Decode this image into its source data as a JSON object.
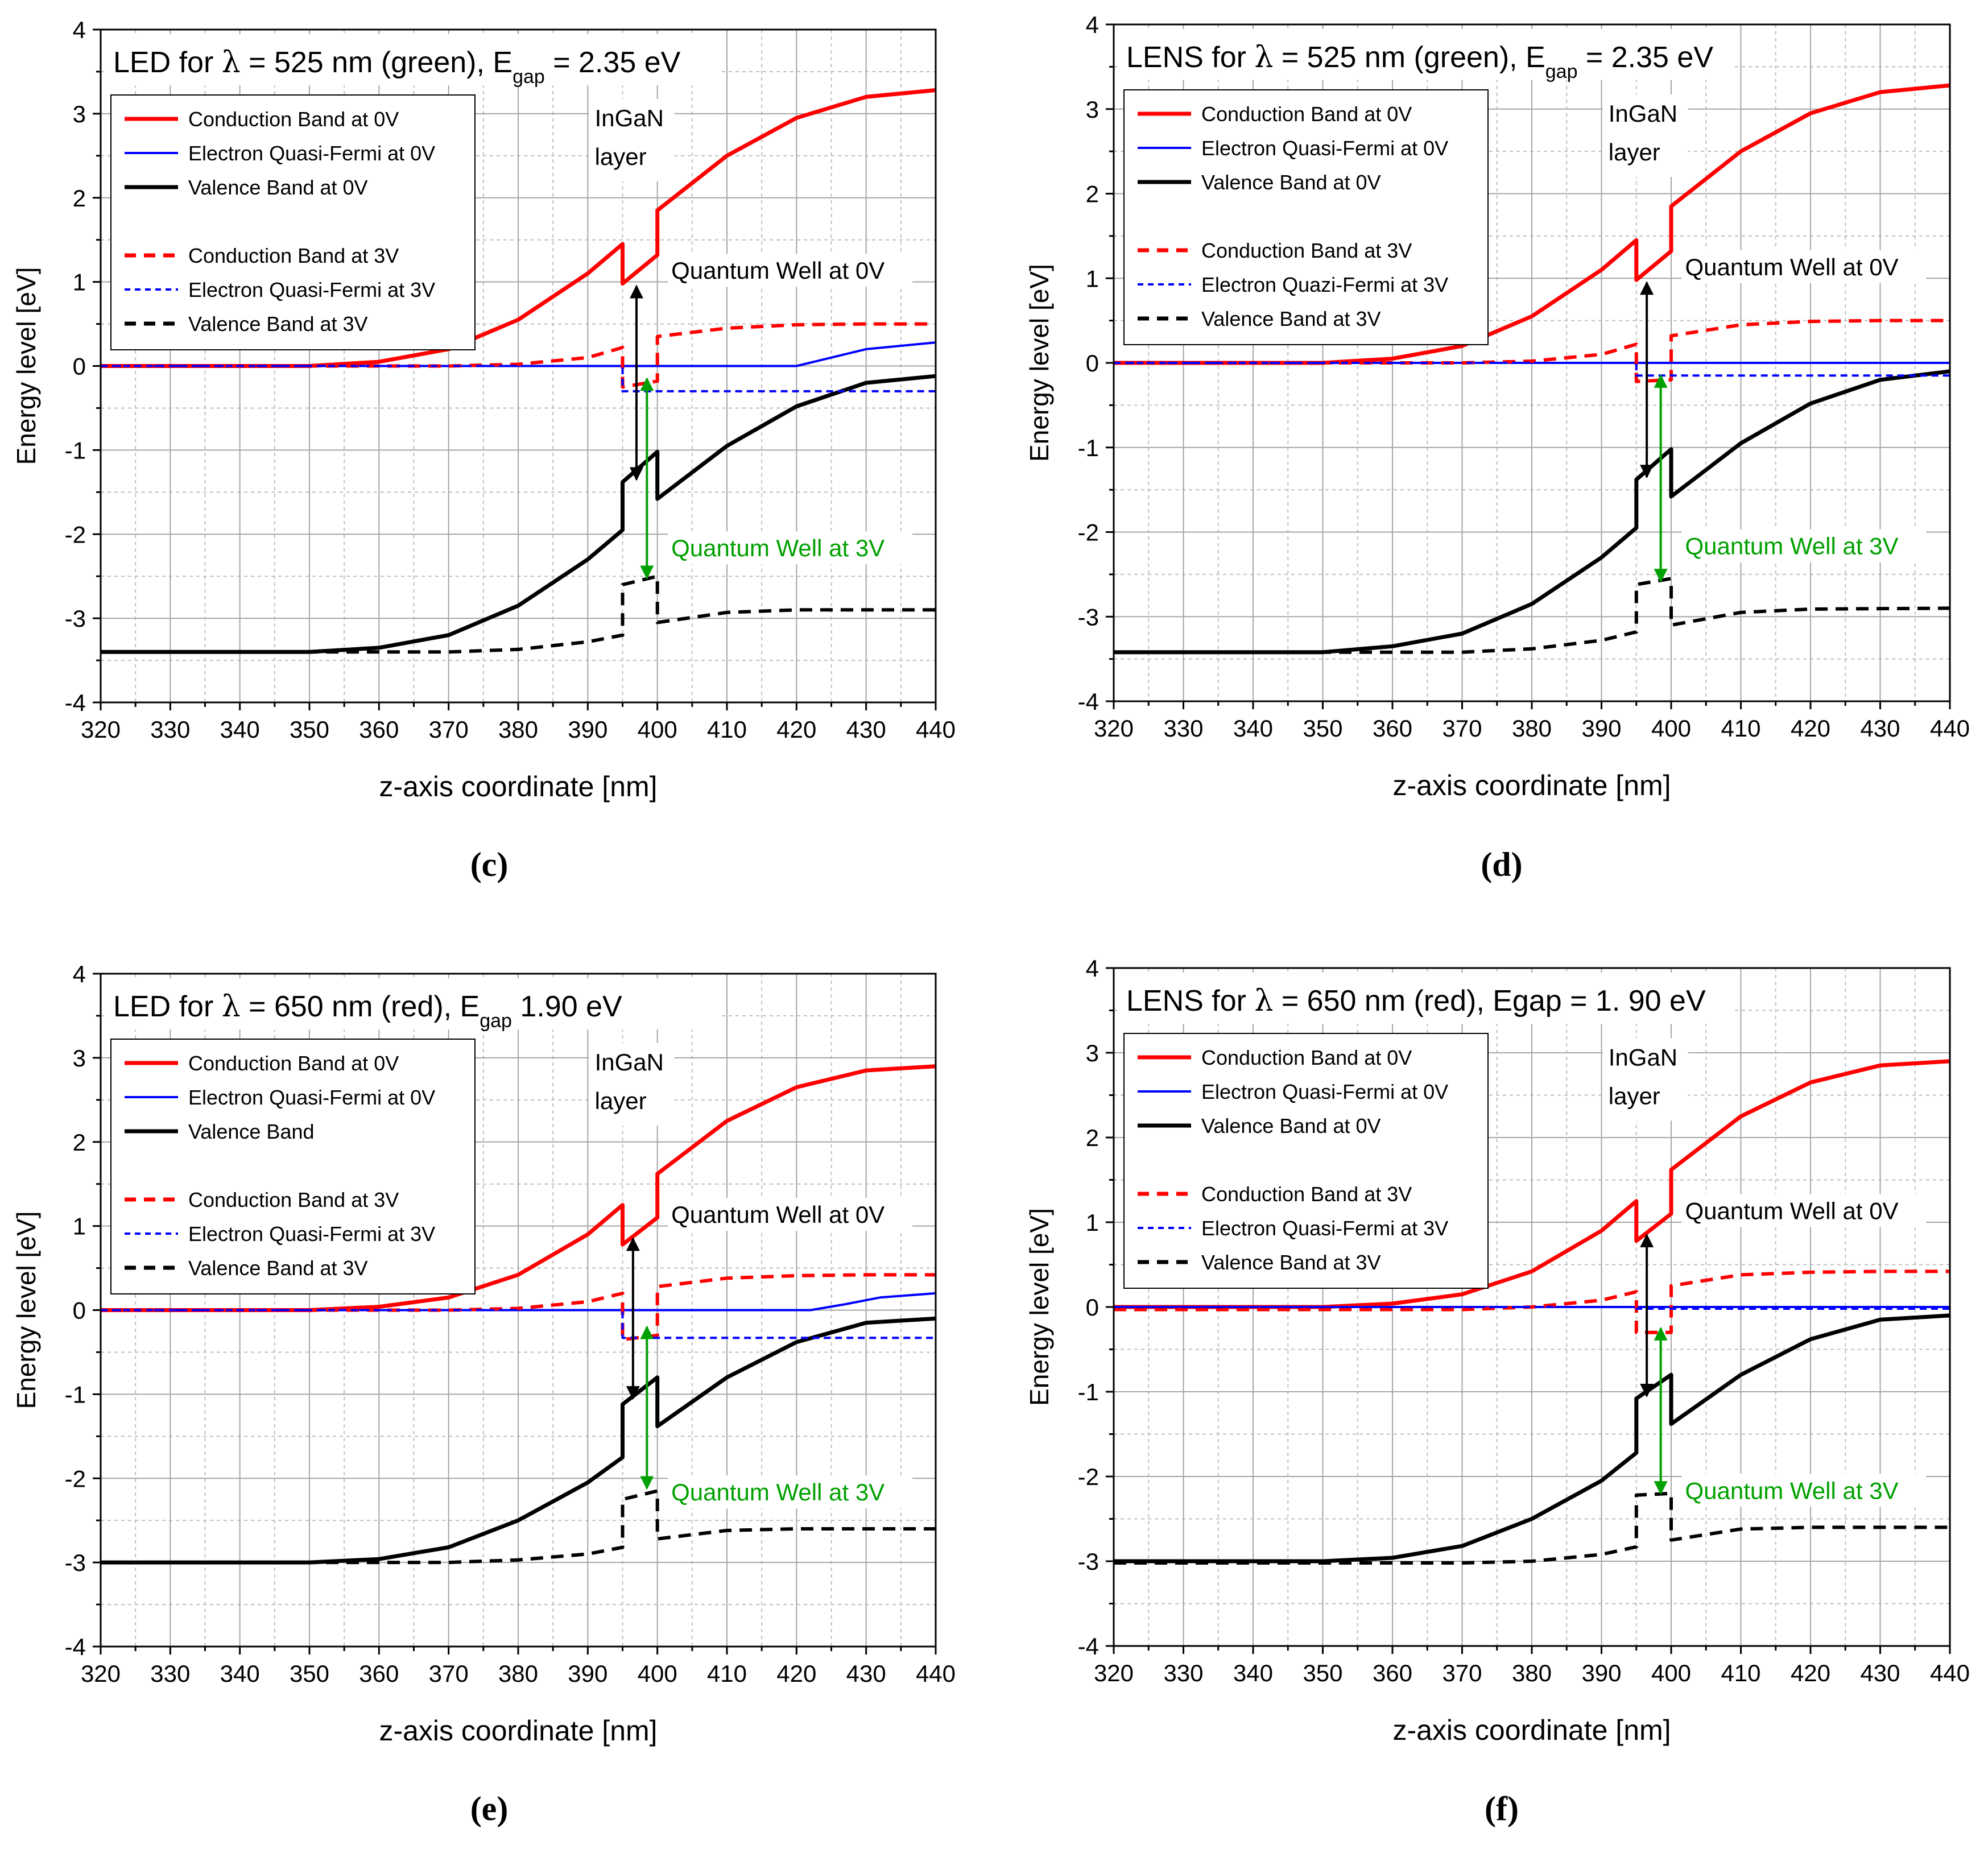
{
  "chart_data": [
    {
      "panel": "(c)",
      "type": "line",
      "title_main": "LED for ",
      "title_lambda": "λ",
      "title_rest": " = 525 nm (green), E",
      "title_sub": "gap",
      "title_end": " = 2.35 eV",
      "xlabel": "z-axis coordinate [nm]",
      "ylabel": "Energy level [eV]",
      "xlim": [
        320,
        440
      ],
      "ylim": [
        -4,
        4
      ],
      "xticks": [
        "320",
        "330",
        "340",
        "350",
        "360",
        "370",
        "380",
        "390",
        "400",
        "410",
        "420",
        "430",
        "440"
      ],
      "yticks": [
        "-4",
        "-3",
        "-2",
        "-1",
        "0",
        "1",
        "2",
        "3",
        "4"
      ],
      "legend": [
        {
          "label": "Conduction Band at 0V",
          "color": "#ff0000",
          "dash": false,
          "thick": true
        },
        {
          "label": "Electron Quasi-Fermi at 0V",
          "color": "#0000ff",
          "dash": false,
          "thick": false
        },
        {
          "label": "Valence Band at 0V",
          "color": "#000000",
          "dash": false,
          "thick": true
        },
        {
          "label": "Conduction Band at 3V",
          "color": "#ff0000",
          "dash": true,
          "thick": true
        },
        {
          "label": "Electron Quasi-Fermi at 3V",
          "color": "#0000ff",
          "dash": true,
          "thick": false
        },
        {
          "label": "Valence Band at 3V",
          "color": "#000000",
          "dash": true,
          "thick": true
        }
      ],
      "annotations": {
        "ingan_line1": "InGaN",
        "ingan_line2": "layer",
        "qw0": "Quantum Well at 0V",
        "qw3": "Quantum Well at 3V"
      },
      "qw0_arrow": {
        "x": 397,
        "y1": 0.95,
        "y2": -1.35
      },
      "qw3_arrow": {
        "x": 398.5,
        "y1": -0.15,
        "y2": -2.52
      },
      "series": [
        {
          "name": "Conduction Band at 0V",
          "x": [
            320,
            350,
            360,
            370,
            380,
            390,
            395,
            395,
            400,
            400,
            410,
            420,
            430,
            440
          ],
          "y": [
            0,
            0,
            0.05,
            0.2,
            0.55,
            1.1,
            1.45,
            0.98,
            1.32,
            1.85,
            2.5,
            2.95,
            3.2,
            3.28
          ]
        },
        {
          "name": "Electron Quasi-Fermi at 0V",
          "x": [
            320,
            420,
            425,
            430,
            440
          ],
          "y": [
            0,
            0,
            0.1,
            0.2,
            0.28
          ]
        },
        {
          "name": "Valence Band at 0V",
          "x": [
            320,
            350,
            360,
            370,
            380,
            390,
            395,
            395,
            400,
            400,
            410,
            420,
            430,
            440
          ],
          "y": [
            -3.4,
            -3.4,
            -3.35,
            -3.2,
            -2.85,
            -2.3,
            -1.95,
            -1.38,
            -1.02,
            -1.58,
            -0.95,
            -0.48,
            -0.2,
            -0.12
          ]
        },
        {
          "name": "Conduction Band at 3V",
          "x": [
            320,
            370,
            380,
            390,
            395,
            395,
            400,
            400,
            410,
            420,
            430,
            440
          ],
          "y": [
            0,
            0,
            0.02,
            0.1,
            0.22,
            -0.25,
            -0.18,
            0.35,
            0.45,
            0.49,
            0.5,
            0.5
          ]
        },
        {
          "name": "Electron Quasi-Fermi at 3V",
          "x": [
            320,
            395,
            395,
            440
          ],
          "y": [
            0,
            0,
            -0.3,
            -0.3
          ]
        },
        {
          "name": "Valence Band at 3V",
          "x": [
            320,
            370,
            380,
            390,
            395,
            395,
            400,
            400,
            410,
            420,
            440
          ],
          "y": [
            -3.4,
            -3.4,
            -3.37,
            -3.28,
            -3.2,
            -2.6,
            -2.5,
            -3.05,
            -2.93,
            -2.9,
            -2.9
          ]
        }
      ]
    },
    {
      "panel": "(d)",
      "type": "line",
      "title_main": "LENS for ",
      "title_lambda": "λ",
      "title_rest": " = 525 nm (green), E",
      "title_sub": "gap",
      "title_end": " = 2.35 eV",
      "xlabel": "z-axis coordinate [nm]",
      "ylabel": "Energy level [eV]",
      "xlim": [
        320,
        440
      ],
      "ylim": [
        -4,
        4
      ],
      "xticks": [
        "320",
        "330",
        "340",
        "350",
        "360",
        "370",
        "380",
        "390",
        "400",
        "410",
        "420",
        "430",
        "440"
      ],
      "yticks": [
        "-4",
        "-3",
        "-2",
        "-1",
        "0",
        "1",
        "2",
        "3",
        "4"
      ],
      "legend": [
        {
          "label": "Conduction Band at 0V",
          "color": "#ff0000",
          "dash": false,
          "thick": true
        },
        {
          "label": "Electron Quasi-Fermi at 0V",
          "color": "#0000ff",
          "dash": false,
          "thick": false
        },
        {
          "label": "Valence Band at 0V",
          "color": "#000000",
          "dash": false,
          "thick": true
        },
        {
          "label": "Conduction Band at 3V",
          "color": "#ff0000",
          "dash": true,
          "thick": true
        },
        {
          "label": "Electron Quazi-Fermi at 3V",
          "color": "#0000ff",
          "dash": true,
          "thick": false
        },
        {
          "label": "Valence Band at 3V",
          "color": "#000000",
          "dash": true,
          "thick": true
        }
      ],
      "annotations": {
        "ingan_line1": "InGaN",
        "ingan_line2": "layer",
        "qw0": "Quantum Well at 0V",
        "qw3": "Quantum Well at 3V"
      },
      "qw0_arrow": {
        "x": 396.5,
        "y1": 0.95,
        "y2": -1.35
      },
      "qw3_arrow": {
        "x": 398.5,
        "y1": -0.15,
        "y2": -2.58
      },
      "series": [
        {
          "name": "Conduction Band at 0V",
          "x": [
            320,
            350,
            360,
            370,
            380,
            390,
            395,
            395,
            400,
            400,
            410,
            420,
            430,
            440
          ],
          "y": [
            0,
            0,
            0.05,
            0.2,
            0.55,
            1.1,
            1.45,
            0.98,
            1.32,
            1.85,
            2.5,
            2.95,
            3.2,
            3.28
          ]
        },
        {
          "name": "Electron Quasi-Fermi at 0V",
          "x": [
            320,
            440
          ],
          "y": [
            0,
            0
          ]
        },
        {
          "name": "Valence Band at 0V",
          "x": [
            320,
            350,
            360,
            370,
            380,
            390,
            395,
            395,
            400,
            400,
            410,
            420,
            430,
            440
          ],
          "y": [
            -3.42,
            -3.42,
            -3.35,
            -3.2,
            -2.85,
            -2.3,
            -1.95,
            -1.38,
            -1.02,
            -1.58,
            -0.95,
            -0.48,
            -0.2,
            -0.1
          ]
        },
        {
          "name": "Conduction Band at 3V",
          "x": [
            320,
            370,
            380,
            390,
            395,
            395,
            400,
            400,
            410,
            420,
            430,
            440
          ],
          "y": [
            0,
            0,
            0.02,
            0.1,
            0.22,
            -0.22,
            -0.2,
            0.32,
            0.45,
            0.49,
            0.5,
            0.5
          ]
        },
        {
          "name": "Electron Quazi-Fermi at 3V",
          "x": [
            320,
            395,
            395,
            440
          ],
          "y": [
            0,
            0,
            -0.15,
            -0.15
          ]
        },
        {
          "name": "Valence Band at 3V",
          "x": [
            320,
            370,
            380,
            390,
            395,
            395,
            400,
            400,
            410,
            420,
            440
          ],
          "y": [
            -3.42,
            -3.42,
            -3.38,
            -3.28,
            -3.18,
            -2.62,
            -2.55,
            -3.1,
            -2.95,
            -2.91,
            -2.9
          ]
        }
      ]
    },
    {
      "panel": "(e)",
      "type": "line",
      "title_main": "LED for ",
      "title_lambda": "λ",
      "title_rest": " = 650 nm (red), E",
      "title_sub": "gap",
      "title_end": " 1.90 eV",
      "xlabel": "z-axis coordinate [nm]",
      "ylabel": "Energy level [eV]",
      "xlim": [
        320,
        440
      ],
      "ylim": [
        -4,
        4
      ],
      "xticks": [
        "320",
        "330",
        "340",
        "350",
        "360",
        "370",
        "380",
        "390",
        "400",
        "410",
        "420",
        "430",
        "440"
      ],
      "yticks": [
        "-4",
        "-3",
        "-2",
        "-1",
        "0",
        "1",
        "2",
        "3",
        "4"
      ],
      "legend": [
        {
          "label": "Conduction Band at 0V",
          "color": "#ff0000",
          "dash": false,
          "thick": true
        },
        {
          "label": "Electron Quasi-Fermi at 0V",
          "color": "#0000ff",
          "dash": false,
          "thick": false
        },
        {
          "label": "Valence Band",
          "color": "#000000",
          "dash": false,
          "thick": true
        },
        {
          "label": "Conduction Band at 3V",
          "color": "#ff0000",
          "dash": true,
          "thick": true
        },
        {
          "label": "Electron Quasi-Fermi at 3V",
          "color": "#0000ff",
          "dash": true,
          "thick": false
        },
        {
          "label": "Valence Band at 3V",
          "color": "#000000",
          "dash": true,
          "thick": true
        }
      ],
      "annotations": {
        "ingan_line1": "InGaN",
        "ingan_line2": "layer",
        "qw0": "Quantum Well at 0V",
        "qw3": "Quantum Well at 3V"
      },
      "qw0_arrow": {
        "x": 396.5,
        "y1": 0.85,
        "y2": -1.05
      },
      "qw3_arrow": {
        "x": 398.5,
        "y1": -0.2,
        "y2": -2.12
      },
      "series": [
        {
          "name": "Conduction Band at 0V",
          "x": [
            320,
            350,
            360,
            370,
            380,
            390,
            395,
            395,
            400,
            400,
            410,
            420,
            430,
            440
          ],
          "y": [
            0,
            0,
            0.04,
            0.15,
            0.42,
            0.9,
            1.25,
            0.78,
            1.1,
            1.62,
            2.25,
            2.65,
            2.85,
            2.9
          ]
        },
        {
          "name": "Electron Quasi-Fermi at 0V",
          "x": [
            320,
            422,
            427,
            432,
            440
          ],
          "y": [
            0,
            0,
            0.07,
            0.15,
            0.2
          ]
        },
        {
          "name": "Valence Band",
          "x": [
            320,
            350,
            360,
            370,
            380,
            390,
            395,
            395,
            400,
            400,
            410,
            420,
            430,
            440
          ],
          "y": [
            -3,
            -3,
            -2.96,
            -2.82,
            -2.5,
            -2.05,
            -1.75,
            -1.12,
            -0.8,
            -1.38,
            -0.8,
            -0.38,
            -0.15,
            -0.1
          ]
        },
        {
          "name": "Conduction Band at 3V",
          "x": [
            320,
            370,
            380,
            390,
            395,
            395,
            400,
            400,
            410,
            420,
            430,
            440
          ],
          "y": [
            0,
            0,
            0.02,
            0.1,
            0.2,
            -0.35,
            -0.3,
            0.28,
            0.38,
            0.41,
            0.42,
            0.42
          ]
        },
        {
          "name": "Electron Quasi-Fermi at 3V",
          "x": [
            320,
            395,
            395,
            440
          ],
          "y": [
            0,
            0,
            -0.33,
            -0.33
          ]
        },
        {
          "name": "Valence Band at 3V",
          "x": [
            320,
            370,
            380,
            390,
            395,
            395,
            400,
            400,
            410,
            420,
            440
          ],
          "y": [
            -3,
            -3,
            -2.97,
            -2.9,
            -2.82,
            -2.25,
            -2.15,
            -2.72,
            -2.62,
            -2.6,
            -2.6
          ]
        }
      ]
    },
    {
      "panel": "(f)",
      "type": "line",
      "title_main": "LENS for ",
      "title_lambda": "λ",
      "title_rest": " = 650 nm (red), Egap = 1. 90 eV",
      "title_sub": "",
      "title_end": "",
      "xlabel": "z-axis coordinate [nm]",
      "ylabel": "Energy level [eV]",
      "xlim": [
        320,
        440
      ],
      "ylim": [
        -4,
        4
      ],
      "xticks": [
        "320",
        "330",
        "340",
        "350",
        "360",
        "370",
        "380",
        "390",
        "400",
        "410",
        "420",
        "430",
        "440"
      ],
      "yticks": [
        "-4",
        "-3",
        "-2",
        "-1",
        "0",
        "1",
        "2",
        "3",
        "4"
      ],
      "legend": [
        {
          "label": "Conduction Band at 0V",
          "color": "#ff0000",
          "dash": false,
          "thick": true
        },
        {
          "label": "Electron Quasi-Fermi at 0V",
          "color": "#0000ff",
          "dash": false,
          "thick": false
        },
        {
          "label": "Valence Band at 0V",
          "color": "#000000",
          "dash": false,
          "thick": true
        },
        {
          "label": "Conduction Band at 3V",
          "color": "#ff0000",
          "dash": true,
          "thick": true
        },
        {
          "label": "Electron Quasi-Fermi at 3V",
          "color": "#0000ff",
          "dash": true,
          "thick": false
        },
        {
          "label": "Valence Band at 3V",
          "color": "#000000",
          "dash": true,
          "thick": true
        }
      ],
      "annotations": {
        "ingan_line1": "InGaN",
        "ingan_line2": "layer",
        "qw0": "Quantum Well at 0V",
        "qw3": "Quantum Well at 3V"
      },
      "qw0_arrow": {
        "x": 396.5,
        "y1": 0.85,
        "y2": -1.05
      },
      "qw3_arrow": {
        "x": 398.5,
        "y1": -0.25,
        "y2": -2.2
      },
      "series": [
        {
          "name": "Conduction Band at 0V",
          "x": [
            320,
            350,
            360,
            370,
            380,
            390,
            395,
            395,
            400,
            400,
            410,
            420,
            430,
            440
          ],
          "y": [
            0,
            0,
            0.04,
            0.15,
            0.42,
            0.9,
            1.25,
            0.78,
            1.1,
            1.62,
            2.25,
            2.65,
            2.85,
            2.9
          ]
        },
        {
          "name": "Electron Quasi-Fermi at 0V",
          "x": [
            320,
            440
          ],
          "y": [
            0,
            0
          ]
        },
        {
          "name": "Valence Band at 0V",
          "x": [
            320,
            350,
            360,
            370,
            380,
            390,
            395,
            395,
            400,
            400,
            410,
            420,
            430,
            440
          ],
          "y": [
            -3,
            -3,
            -2.96,
            -2.82,
            -2.5,
            -2.05,
            -1.72,
            -1.08,
            -0.8,
            -1.38,
            -0.8,
            -0.38,
            -0.15,
            -0.1
          ]
        },
        {
          "name": "Conduction Band at 3V",
          "x": [
            320,
            370,
            380,
            390,
            395,
            395,
            400,
            400,
            410,
            420,
            430,
            440
          ],
          "y": [
            -0.03,
            -0.03,
            0,
            0.08,
            0.18,
            -0.3,
            -0.3,
            0.25,
            0.38,
            0.41,
            0.42,
            0.42
          ]
        },
        {
          "name": "Electron Quasi-Fermi at 3V",
          "x": [
            320,
            395,
            395,
            440
          ],
          "y": [
            0,
            0,
            -0.02,
            -0.02
          ]
        },
        {
          "name": "Valence Band at 3V",
          "x": [
            320,
            370,
            380,
            390,
            395,
            395,
            400,
            400,
            410,
            420,
            440
          ],
          "y": [
            -3.02,
            -3.02,
            -3,
            -2.92,
            -2.83,
            -2.22,
            -2.2,
            -2.75,
            -2.62,
            -2.6,
            -2.6
          ]
        }
      ]
    }
  ]
}
